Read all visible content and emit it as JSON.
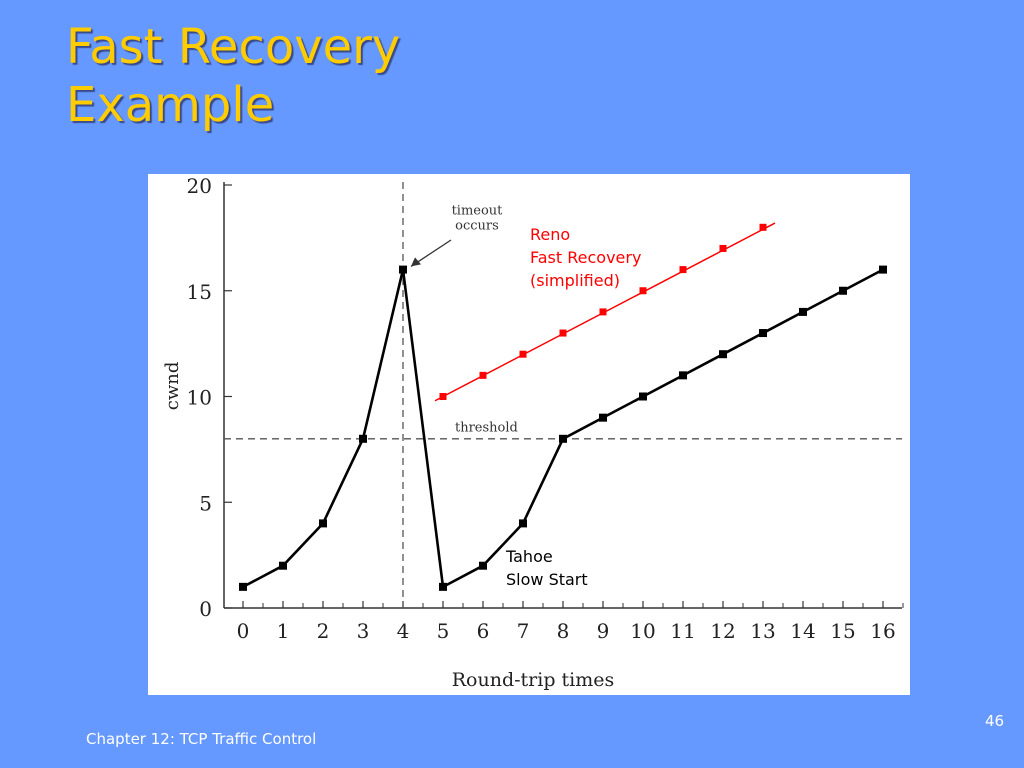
{
  "slide": {
    "title_line1": "Fast Recovery",
    "title_line2": "Example",
    "footer": "Chapter 12:  TCP Traffic Control",
    "page_number": "46"
  },
  "colors": {
    "background": "#6699ff",
    "title": "#ffcc00",
    "tahoe": "#000000",
    "reno": "#ff0000"
  },
  "chart_data": {
    "type": "line",
    "xlabel": "Round-trip times",
    "ylabel": "cwnd",
    "xlim": [
      0,
      16
    ],
    "ylim": [
      0,
      20
    ],
    "x_ticks": [
      0,
      1,
      2,
      3,
      4,
      5,
      6,
      7,
      8,
      9,
      10,
      11,
      12,
      13,
      14,
      15,
      16
    ],
    "y_ticks": [
      0,
      5,
      10,
      15,
      20
    ],
    "series": [
      {
        "name": "Tahoe Slow Start",
        "label_lines": [
          "Tahoe",
          "Slow Start"
        ],
        "color": "#000000",
        "x": [
          0,
          1,
          2,
          3,
          4,
          5,
          6,
          7,
          8,
          9,
          10,
          11,
          12,
          13,
          14,
          15,
          16
        ],
        "y": [
          1,
          2,
          4,
          8,
          16,
          1,
          2,
          4,
          8,
          9,
          10,
          11,
          12,
          13,
          14,
          15,
          16
        ]
      },
      {
        "name": "Reno Fast Recovery (simplified)",
        "label_lines": [
          "Reno",
          "Fast Recovery",
          "(simplified)"
        ],
        "color": "#ff0000",
        "x": [
          5,
          6,
          7,
          8,
          9,
          10,
          11,
          12,
          13
        ],
        "y": [
          10,
          11,
          12,
          13,
          14,
          15,
          16,
          17,
          18
        ]
      }
    ],
    "annotations": [
      {
        "text_lines": [
          "timeout",
          "occurs"
        ],
        "x": 4,
        "y": 16
      },
      {
        "text": "threshold",
        "y": 8
      }
    ],
    "reference_lines": {
      "vertical_x": 4,
      "horizontal_y": 8
    }
  }
}
